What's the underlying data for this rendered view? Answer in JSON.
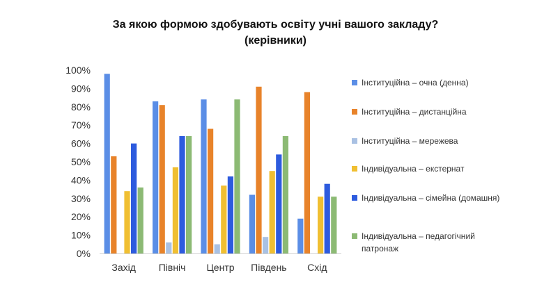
{
  "chart_data": {
    "type": "bar",
    "title": [
      "За якою формою здобувають освіту учні вашого закладу?",
      "(керівники)"
    ],
    "categories": [
      "Захід",
      "Північ",
      "Центр",
      "Південь",
      "Схід"
    ],
    "yticks": [
      "0%",
      "10%",
      "20%",
      "30%",
      "40%",
      "50%",
      "60%",
      "70%",
      "80%",
      "90%",
      "100%"
    ],
    "ylim": [
      0,
      100
    ],
    "legend_position": "right",
    "series": [
      {
        "name": "Інституційна – очна (денна)",
        "color": "#5b8ee6",
        "values": [
          98,
          83,
          84,
          32,
          19
        ]
      },
      {
        "name": "Інституційна – дистанційна",
        "color": "#e8832a",
        "values": [
          53,
          81,
          68,
          91,
          88
        ]
      },
      {
        "name": "Інституційна – мережева",
        "color": "#a9c1e3",
        "values": [
          0,
          6,
          5,
          9,
          0
        ]
      },
      {
        "name": "Індивідуальна – екстернат",
        "color": "#f0bf32",
        "values": [
          34,
          47,
          37,
          45,
          31
        ]
      },
      {
        "name": "Індивідуальна – сімейна (домашня)",
        "color": "#2d5bde",
        "values": [
          60,
          64,
          42,
          54,
          38
        ]
      },
      {
        "name": "Індивідуальна – педагогічний патронаж",
        "color": "#8cba74",
        "values": [
          36,
          64,
          84,
          64,
          31
        ]
      }
    ]
  }
}
